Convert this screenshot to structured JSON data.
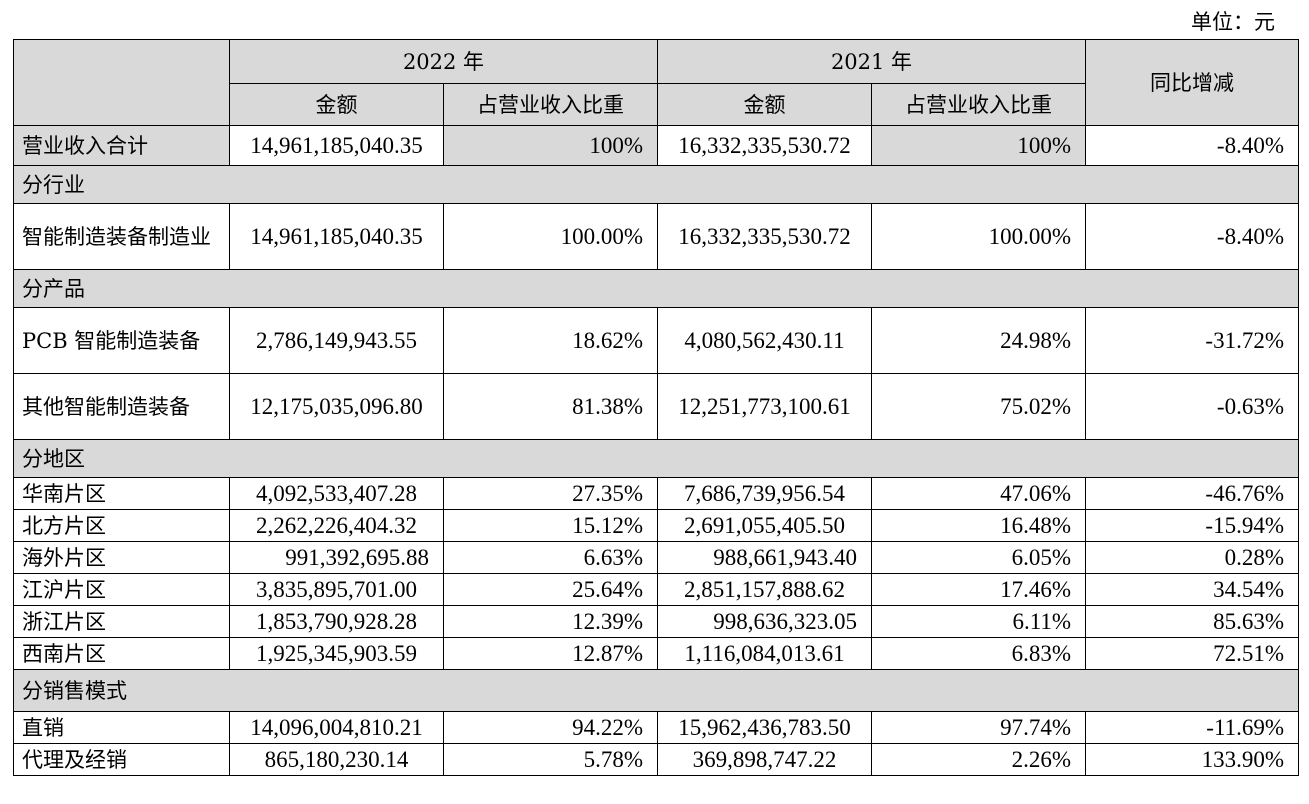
{
  "unit_label": "单位：元",
  "header": {
    "year_2022": "2022 年",
    "year_2021": "2021 年",
    "amount": "金额",
    "ratio": "占营业收入比重",
    "yoy": "同比增减"
  },
  "total_row": {
    "label": "营业收入合计",
    "amount_2022": "14,961,185,040.35",
    "ratio_2022": "100%",
    "amount_2021": "16,332,335,530.72",
    "ratio_2021": "100%",
    "yoy": "-8.40%"
  },
  "sections": [
    {
      "title": "分行业",
      "rows": [
        {
          "label": "智能制造装备制造业",
          "amount_2022": "14,961,185,040.35",
          "ratio_2022": "100.00%",
          "amount_2021": "16,332,335,530.72",
          "ratio_2021": "100.00%",
          "yoy": "-8.40%"
        }
      ]
    },
    {
      "title": "分产品",
      "rows": [
        {
          "label": "PCB 智能制造装备",
          "amount_2022": "2,786,149,943.55",
          "ratio_2022": "18.62%",
          "amount_2021": "4,080,562,430.11",
          "ratio_2021": "24.98%",
          "yoy": "-31.72%"
        },
        {
          "label": "其他智能制造装备",
          "amount_2022": "12,175,035,096.80",
          "ratio_2022": "81.38%",
          "amount_2021": "12,251,773,100.61",
          "ratio_2021": "75.02%",
          "yoy": "-0.63%"
        }
      ]
    },
    {
      "title": "分地区",
      "rows": [
        {
          "label": "华南片区",
          "amount_2022": "4,092,533,407.28",
          "ratio_2022": "27.35%",
          "amount_2021": "7,686,739,956.54",
          "ratio_2021": "47.06%",
          "yoy": "-46.76%"
        },
        {
          "label": "北方片区",
          "amount_2022": "2,262,226,404.32",
          "ratio_2022": "15.12%",
          "amount_2021": "2,691,055,405.50",
          "ratio_2021": "16.48%",
          "yoy": "-15.94%"
        },
        {
          "label": "海外片区",
          "amount_2022": "991,392,695.88",
          "ratio_2022": "6.63%",
          "amount_2021": "988,661,943.40",
          "ratio_2021": "6.05%",
          "yoy": "0.28%"
        },
        {
          "label": "江沪片区",
          "amount_2022": "3,835,895,701.00",
          "ratio_2022": "25.64%",
          "amount_2021": "2,851,157,888.62",
          "ratio_2021": "17.46%",
          "yoy": "34.54%"
        },
        {
          "label": "浙江片区",
          "amount_2022": "1,853,790,928.28",
          "ratio_2022": "12.39%",
          "amount_2021": "998,636,323.05",
          "ratio_2021": "6.11%",
          "yoy": "85.63%"
        },
        {
          "label": "西南片区",
          "amount_2022": "1,925,345,903.59",
          "ratio_2022": "12.87%",
          "amount_2021": "1,116,084,013.61",
          "ratio_2021": "6.83%",
          "yoy": "72.51%"
        }
      ]
    },
    {
      "title": "分销售模式",
      "rows": [
        {
          "label": "直销",
          "amount_2022": "14,096,004,810.21",
          "ratio_2022": "94.22%",
          "amount_2021": "15,962,436,783.50",
          "ratio_2021": "97.74%",
          "yoy": "-11.69%"
        },
        {
          "label": "代理及经销",
          "amount_2022": "865,180,230.14",
          "ratio_2022": "5.78%",
          "amount_2021": "369,898,747.22",
          "ratio_2021": "2.26%",
          "yoy": "133.90%"
        }
      ]
    }
  ],
  "colors": {
    "header_fill": "#d9d9d9",
    "border": "#000000"
  }
}
